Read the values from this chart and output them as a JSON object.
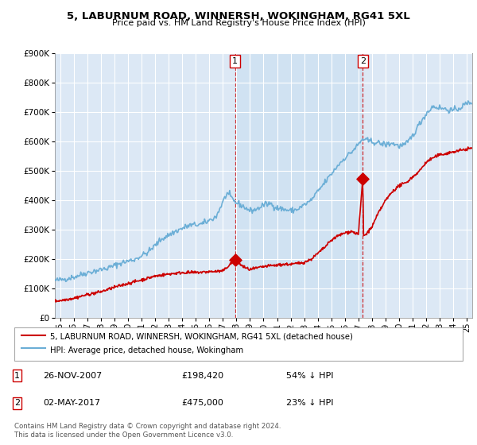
{
  "title": "5, LABURNUM ROAD, WINNERSH, WOKINGHAM, RG41 5XL",
  "subtitle": "Price paid vs. HM Land Registry's House Price Index (HPI)",
  "legend_line1": "5, LABURNUM ROAD, WINNERSH, WOKINGHAM, RG41 5XL (detached house)",
  "legend_line2": "HPI: Average price, detached house, Wokingham",
  "annotation1_label": "1",
  "annotation1_date": "26-NOV-2007",
  "annotation1_price": "£198,420",
  "annotation1_pct": "54% ↓ HPI",
  "annotation2_label": "2",
  "annotation2_date": "02-MAY-2017",
  "annotation2_price": "£475,000",
  "annotation2_pct": "23% ↓ HPI",
  "footnote": "Contains HM Land Registry data © Crown copyright and database right 2024.\nThis data is licensed under the Open Government Licence v3.0.",
  "sale1_x": 2007.9,
  "sale1_y": 198420,
  "sale2_x": 2017.33,
  "sale2_y": 475000,
  "hpi_color": "#6baed6",
  "price_color": "#cc0000",
  "dashed_color": "#cc0000",
  "highlight_color": "#dce8f5",
  "background_color": "#dce8f5",
  "ylim": [
    0,
    900000
  ],
  "xlim_start": 1994.6,
  "xlim_end": 2025.4
}
